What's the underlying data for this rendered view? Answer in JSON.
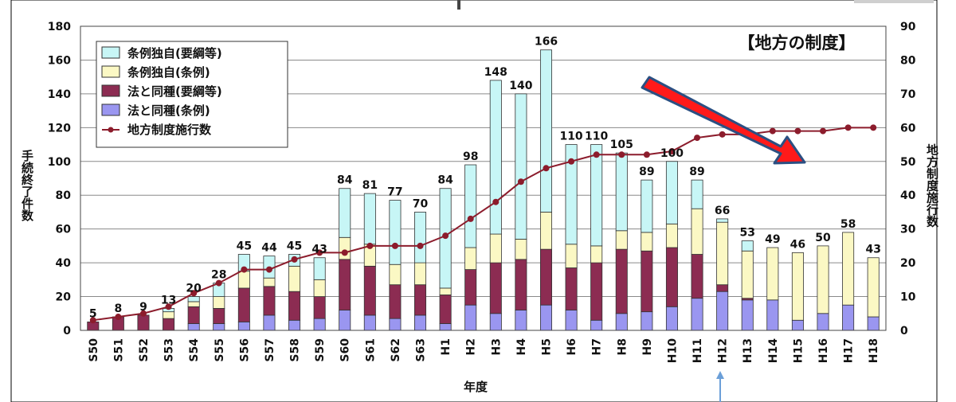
{
  "chart_data": {
    "type": "bar",
    "title": "【地方の制度】",
    "xlabel": "年度",
    "ylabel": "手続終了件数",
    "y2label": "地方制度施行数",
    "ylim": [
      0,
      180
    ],
    "y2lim": [
      0,
      90
    ],
    "yticks": [
      0,
      20,
      40,
      60,
      80,
      100,
      120,
      140,
      160,
      180
    ],
    "y2ticks": [
      0,
      10,
      20,
      30,
      40,
      50,
      60,
      70,
      80,
      90
    ],
    "grid": true,
    "legend_position": "top-left",
    "stacked": true,
    "categories": [
      "S50",
      "S51",
      "S52",
      "S53",
      "S54",
      "S55",
      "S56",
      "S57",
      "S58",
      "S59",
      "S60",
      "S61",
      "S62",
      "S63",
      "H1",
      "H2",
      "H3",
      "H4",
      "H5",
      "H6",
      "H7",
      "H8",
      "H9",
      "H10",
      "H11",
      "H12",
      "H13",
      "H14",
      "H15",
      "H16",
      "H17",
      "H18"
    ],
    "totals": [
      5,
      8,
      9,
      13,
      20,
      28,
      45,
      44,
      45,
      43,
      84,
      81,
      77,
      70,
      84,
      98,
      148,
      140,
      166,
      110,
      110,
      105,
      89,
      100,
      89,
      66,
      53,
      49,
      46,
      50,
      58,
      43
    ],
    "series": [
      {
        "name": "法と同種(条例)",
        "color": "#9a96f0",
        "axis": "left",
        "values": [
          0,
          0,
          0,
          0,
          4,
          4,
          5,
          9,
          6,
          7,
          12,
          9,
          7,
          9,
          4,
          15,
          10,
          12,
          15,
          12,
          6,
          10,
          11,
          14,
          19,
          23,
          18,
          18,
          6,
          10,
          15,
          8
        ]
      },
      {
        "name": "法と同種(要綱等)",
        "color": "#8c2c52",
        "axis": "left",
        "values": [
          5,
          8,
          9,
          7,
          10,
          9,
          20,
          17,
          17,
          13,
          30,
          29,
          20,
          18,
          17,
          21,
          30,
          30,
          33,
          25,
          34,
          38,
          36,
          35,
          26,
          4,
          1,
          0,
          0,
          0,
          0,
          0
        ]
      },
      {
        "name": "条例独自(条例)",
        "color": "#fbf8c4",
        "axis": "left",
        "values": [
          0,
          0,
          0,
          4,
          3,
          7,
          10,
          5,
          15,
          10,
          13,
          13,
          12,
          13,
          4,
          13,
          17,
          12,
          22,
          14,
          10,
          11,
          11,
          14,
          27,
          37,
          28,
          31,
          40,
          40,
          43,
          35
        ]
      },
      {
        "name": "条例独自(要綱等)",
        "color": "#c7f6f6",
        "axis": "left",
        "values": [
          0,
          0,
          0,
          2,
          3,
          8,
          10,
          13,
          7,
          13,
          29,
          30,
          38,
          30,
          59,
          49,
          91,
          86,
          96,
          59,
          60,
          46,
          31,
          37,
          17,
          2,
          6,
          0,
          0,
          0,
          0,
          0
        ]
      },
      {
        "name": "地方制度施行数",
        "color": "#8c1c2c",
        "axis": "right",
        "type": "line",
        "values": [
          3,
          4,
          5,
          7,
          11,
          14,
          18,
          18,
          21,
          23,
          23,
          25,
          25,
          25,
          28,
          33,
          38,
          44,
          48,
          50,
          52,
          52,
          52,
          53,
          57,
          58,
          58,
          59,
          59,
          59,
          60,
          60
        ]
      }
    ],
    "annotations": [
      {
        "kind": "red-arrow",
        "description": "trend arrow pointing down-right"
      },
      {
        "kind": "blue-arrow",
        "description": "marker pointing up at H12"
      }
    ]
  }
}
